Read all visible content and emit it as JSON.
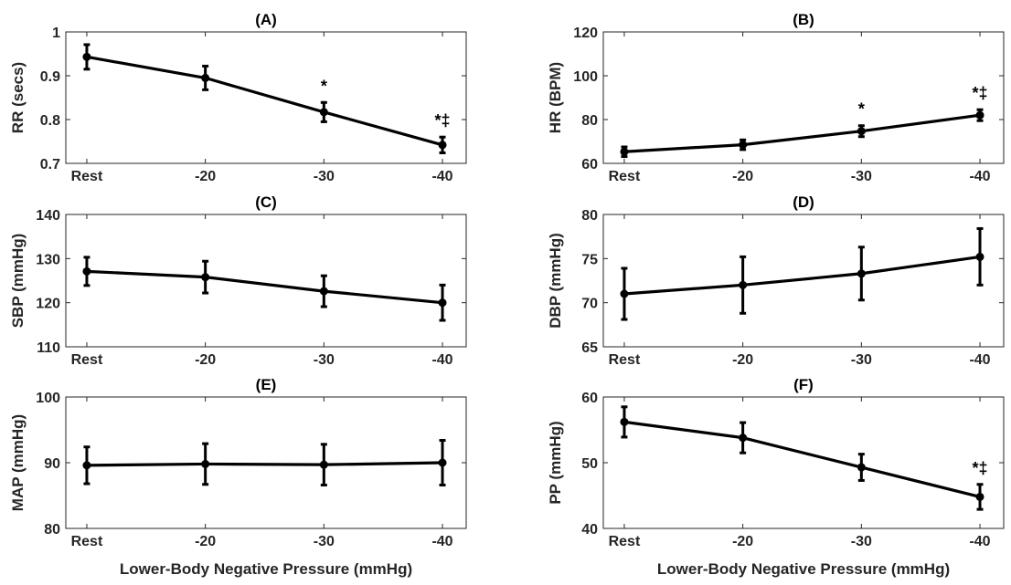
{
  "chart_data": [
    {
      "type": "line",
      "title": "(A)",
      "ylabel": "RR (secs)",
      "xlabel": "",
      "categories": [
        "Rest",
        "-20",
        "-30",
        "-40"
      ],
      "values": [
        0.943,
        0.895,
        0.817,
        0.742
      ],
      "error": [
        0.028,
        0.027,
        0.022,
        0.018
      ],
      "ylim": [
        0.7,
        1.0
      ],
      "yticks": [
        0.7,
        0.8,
        0.9,
        1
      ],
      "ytick_labels": [
        "0.7",
        "0.8",
        "0.9",
        "1"
      ],
      "annotations": [
        {
          "category": "-30",
          "text": "*"
        },
        {
          "category": "-40",
          "text": "*‡"
        }
      ]
    },
    {
      "type": "line",
      "title": "(B)",
      "ylabel": "HR (BPM)",
      "xlabel": "",
      "categories": [
        "Rest",
        "-20",
        "-30",
        "-40"
      ],
      "values": [
        65.3,
        68.5,
        74.7,
        82.0
      ],
      "error": [
        2.2,
        2.2,
        2.5,
        2.5
      ],
      "ylim": [
        60,
        120
      ],
      "yticks": [
        60,
        80,
        100,
        120
      ],
      "ytick_labels": [
        "60",
        "80",
        "100",
        "120"
      ],
      "annotations": [
        {
          "category": "-30",
          "text": "*"
        },
        {
          "category": "-40",
          "text": "*‡"
        }
      ]
    },
    {
      "type": "line",
      "title": "(C)",
      "ylabel": "SBP (mmHg)",
      "xlabel": "",
      "categories": [
        "Rest",
        "-20",
        "-30",
        "-40"
      ],
      "values": [
        127.1,
        125.8,
        122.6,
        120.0
      ],
      "error": [
        3.2,
        3.6,
        3.5,
        4.0
      ],
      "ylim": [
        110,
        140
      ],
      "yticks": [
        110,
        120,
        130,
        140
      ],
      "ytick_labels": [
        "110",
        "120",
        "130",
        "140"
      ],
      "annotations": []
    },
    {
      "type": "line",
      "title": "(D)",
      "ylabel": "DBP (mmHg)",
      "xlabel": "",
      "categories": [
        "Rest",
        "-20",
        "-30",
        "-40"
      ],
      "values": [
        71.0,
        72.0,
        73.3,
        75.2
      ],
      "error": [
        2.9,
        3.2,
        3.0,
        3.2
      ],
      "ylim": [
        65,
        80
      ],
      "yticks": [
        65,
        70,
        75,
        80
      ],
      "ytick_labels": [
        "65",
        "70",
        "75",
        "80"
      ],
      "annotations": []
    },
    {
      "type": "line",
      "title": "(E)",
      "ylabel": "MAP (mmHg)",
      "xlabel": "Lower-Body Negative Pressure (mmHg)",
      "categories": [
        "Rest",
        "-20",
        "-30",
        "-40"
      ],
      "values": [
        89.6,
        89.8,
        89.7,
        90.0
      ],
      "error": [
        2.8,
        3.1,
        3.1,
        3.4
      ],
      "ylim": [
        80,
        100
      ],
      "yticks": [
        80,
        90,
        100
      ],
      "ytick_labels": [
        "80",
        "90",
        "100"
      ],
      "annotations": []
    },
    {
      "type": "line",
      "title": "(F)",
      "ylabel": "PP (mmHg)",
      "xlabel": "Lower-Body Negative Pressure (mmHg)",
      "categories": [
        "Rest",
        "-20",
        "-30",
        "-40"
      ],
      "values": [
        56.2,
        53.8,
        49.3,
        44.8
      ],
      "error": [
        2.3,
        2.3,
        2.0,
        1.9
      ],
      "ylim": [
        40,
        60
      ],
      "yticks": [
        40,
        50,
        60
      ],
      "ytick_labels": [
        "40",
        "50",
        "60"
      ],
      "annotations": [
        {
          "category": "-40",
          "text": "*‡"
        }
      ]
    }
  ]
}
